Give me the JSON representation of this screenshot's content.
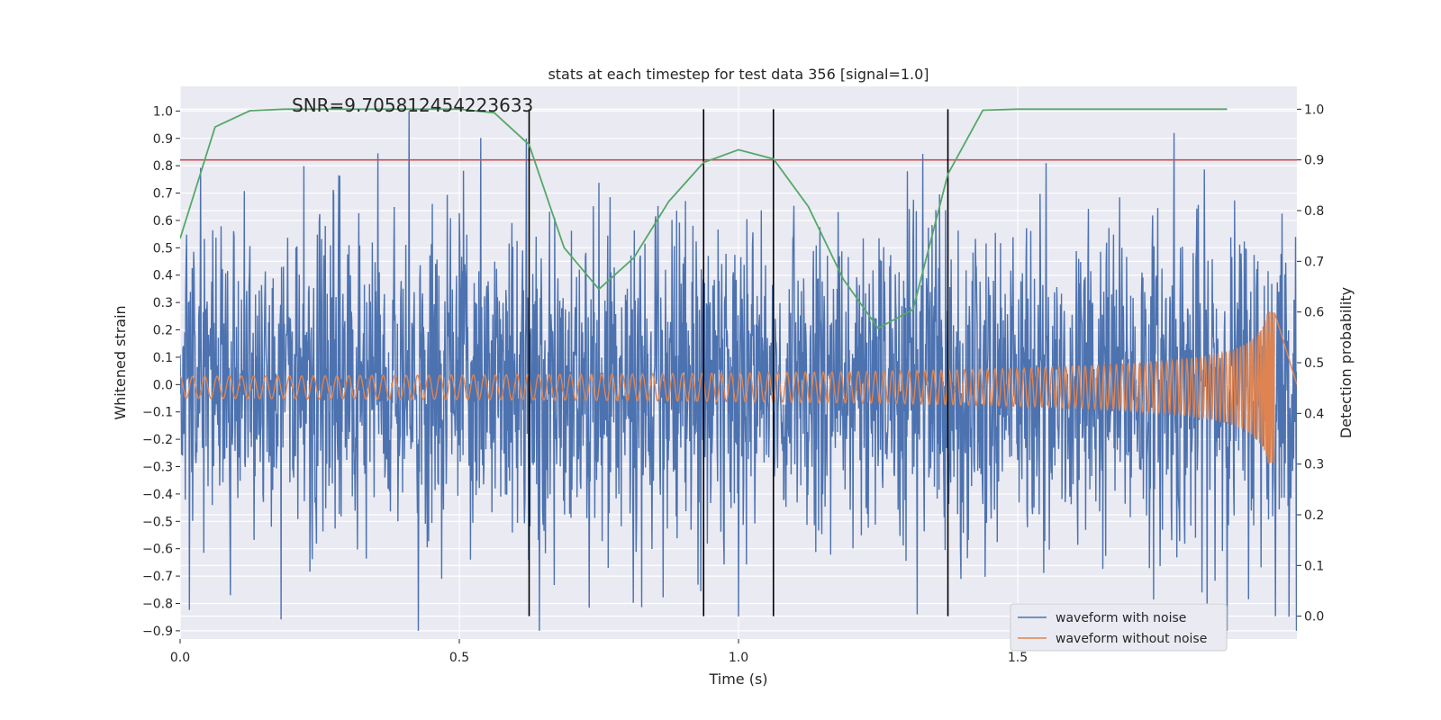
{
  "chart_data": {
    "type": "line",
    "title": "stats at each timestep for test data 356 [signal=1.0]",
    "xlabel": "Time (s)",
    "ylabel": "Whitened strain",
    "y2label": "Detection probability",
    "annotation": "SNR=9.705812454223633",
    "xlim": [
      0,
      2.0
    ],
    "ylim": [
      -0.93,
      1.09
    ],
    "y2lim": [
      -0.045,
      1.045
    ],
    "xticks": [
      0.0,
      0.5,
      1.0,
      1.5
    ],
    "xtick_labels": [
      "0.0",
      "0.5",
      "1.0",
      "1.5"
    ],
    "yticks": [
      1.0,
      0.9,
      0.8,
      0.7,
      0.6,
      0.5,
      0.4,
      0.3,
      0.2,
      0.1,
      0.0,
      -0.1,
      -0.2,
      -0.3,
      -0.4,
      -0.5,
      -0.6,
      -0.7,
      -0.8,
      -0.9
    ],
    "ytick_labels": [
      "1.0",
      "0.9",
      "0.8",
      "0.7",
      "0.6",
      "0.5",
      "0.4",
      "0.3",
      "0.2",
      "0.1",
      "0.0",
      "−0.1",
      "−0.2",
      "−0.3",
      "−0.4",
      "−0.5",
      "−0.6",
      "−0.7",
      "−0.8",
      "−0.9"
    ],
    "y2ticks": [
      1.0,
      0.9,
      0.8,
      0.7,
      0.6,
      0.5,
      0.4,
      0.3,
      0.2,
      0.1,
      0.0
    ],
    "y2tick_labels": [
      "1.0",
      "0.9",
      "0.8",
      "0.7",
      "0.6",
      "0.5",
      "0.4",
      "0.3",
      "0.2",
      "0.1",
      "0.0"
    ],
    "grid": true,
    "legend_position": "lower-right",
    "series": [
      {
        "name": "waveform with noise",
        "axis": "left",
        "color": "#4c72b0",
        "kind": "gaussian-noise",
        "x_range": [
          0,
          2.0
        ],
        "std": 0.3,
        "peaks": [
          [
            0.41,
            1.0
          ],
          [
            0.62,
            0.9
          ],
          [
            1.78,
            0.92
          ],
          [
            0.09,
            -0.77
          ],
          [
            1.32,
            -0.84
          ],
          [
            1.83,
            -0.76
          ]
        ]
      },
      {
        "name": "waveform without noise",
        "axis": "left",
        "color": "#dd8452",
        "kind": "chirp",
        "x_range": [
          0,
          1.96
        ],
        "amplitude_start": 0.04,
        "amplitude_end": 0.33,
        "frequency_start_hz": 45,
        "merger_time": 1.96
      },
      {
        "name": "",
        "axis": "right",
        "color": "#55a868",
        "x": [
          0.0,
          0.0625,
          0.125,
          0.1875,
          0.25,
          0.3125,
          0.375,
          0.4375,
          0.5,
          0.5625,
          0.625,
          0.6875,
          0.75,
          0.8125,
          0.875,
          0.9375,
          1.0,
          1.0625,
          1.125,
          1.1875,
          1.25,
          1.3125,
          1.375,
          1.4375,
          1.5,
          1.5625,
          1.625,
          1.6875,
          1.75,
          1.8125,
          1.875
        ],
        "y": [
          0.745,
          0.965,
          0.997,
          1.0,
          1.0,
          1.0,
          1.0,
          1.0,
          1.0,
          0.993,
          0.93,
          0.727,
          0.645,
          0.707,
          0.818,
          0.895,
          0.92,
          0.902,
          0.808,
          0.665,
          0.568,
          0.605,
          0.872,
          0.998,
          1.0,
          1.0,
          1.0,
          1.0,
          1.0,
          1.0,
          1.0
        ]
      }
    ],
    "threshold_y2": 0.9,
    "threshold_color": "#c44e52",
    "vlines": [
      0.625,
      0.9375,
      1.0625,
      1.375
    ],
    "vline_y2_range": [
      0.0,
      1.0
    ],
    "vline_color": "#000000"
  }
}
